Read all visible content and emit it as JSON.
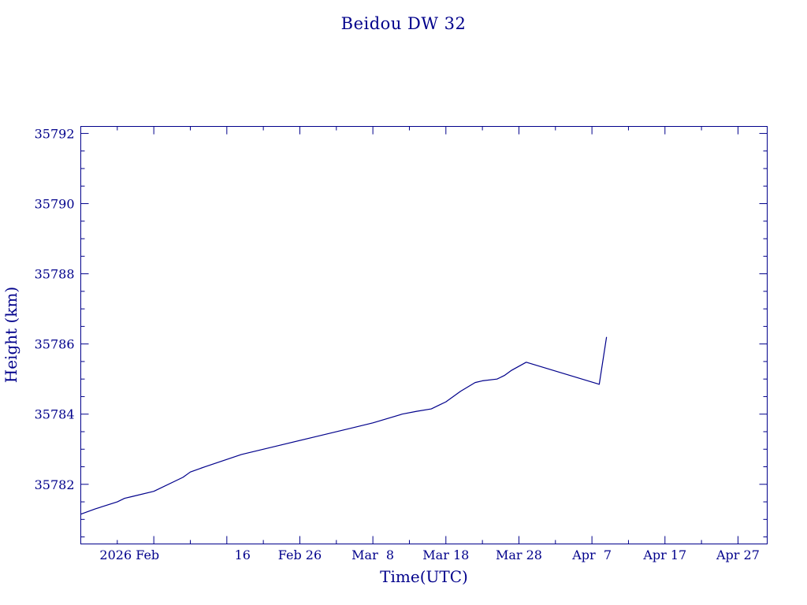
{
  "colors": {
    "ink": "#00008b",
    "background": "#ffffff"
  },
  "chart_data": {
    "type": "line",
    "title": "Beidou DW 32",
    "xlabel": "Time(UTC)",
    "ylabel": "Height (km)",
    "x_is_date": true,
    "xlim": [
      "2026-01-27",
      "2026-05-01"
    ],
    "ylim": [
      35780.3,
      35792.2
    ],
    "x_ticks": [
      {
        "date": "2026-02-06",
        "label": "2026 Feb"
      },
      {
        "date": "2026-02-16",
        "label": "16"
      },
      {
        "date": "2026-02-26",
        "label": "Feb 26"
      },
      {
        "date": "2026-03-08",
        "label": "Mar  8"
      },
      {
        "date": "2026-03-18",
        "label": "Mar 18"
      },
      {
        "date": "2026-03-28",
        "label": "Mar 28"
      },
      {
        "date": "2026-04-07",
        "label": "Apr  7"
      },
      {
        "date": "2026-04-17",
        "label": "Apr 17"
      },
      {
        "date": "2026-04-27",
        "label": "Apr 27"
      }
    ],
    "y_ticks": [
      35782,
      35784,
      35786,
      35788,
      35790,
      35792
    ],
    "grid": false,
    "legend": "none",
    "series": [
      {
        "color": "#00008b",
        "points": [
          [
            "2026-01-27",
            35781.15
          ],
          [
            "2026-01-29",
            35781.3
          ],
          [
            "2026-02-01",
            35781.5
          ],
          [
            "2026-02-02",
            35781.6
          ],
          [
            "2026-02-03",
            35781.65
          ],
          [
            "2026-02-06",
            35781.8
          ],
          [
            "2026-02-10",
            35782.2
          ],
          [
            "2026-02-11",
            35782.35
          ],
          [
            "2026-02-13",
            35782.5
          ],
          [
            "2026-02-18",
            35782.85
          ],
          [
            "2026-02-23",
            35783.1
          ],
          [
            "2026-02-28",
            35783.35
          ],
          [
            "2026-03-05",
            35783.6
          ],
          [
            "2026-03-08",
            35783.75
          ],
          [
            "2026-03-12",
            35784.0
          ],
          [
            "2026-03-14",
            35784.08
          ],
          [
            "2026-03-16",
            35784.15
          ],
          [
            "2026-03-17",
            35784.25
          ],
          [
            "2026-03-18",
            35784.35
          ],
          [
            "2026-03-20",
            35784.65
          ],
          [
            "2026-03-22",
            35784.9
          ],
          [
            "2026-03-23",
            35784.95
          ],
          [
            "2026-03-25",
            35785.0
          ],
          [
            "2026-03-26",
            35785.1
          ],
          [
            "2026-03-27",
            35785.25
          ],
          [
            "2026-03-29",
            35785.48
          ],
          [
            "2026-04-08",
            35784.85
          ],
          [
            "2026-04-09",
            35786.2
          ]
        ]
      }
    ]
  }
}
